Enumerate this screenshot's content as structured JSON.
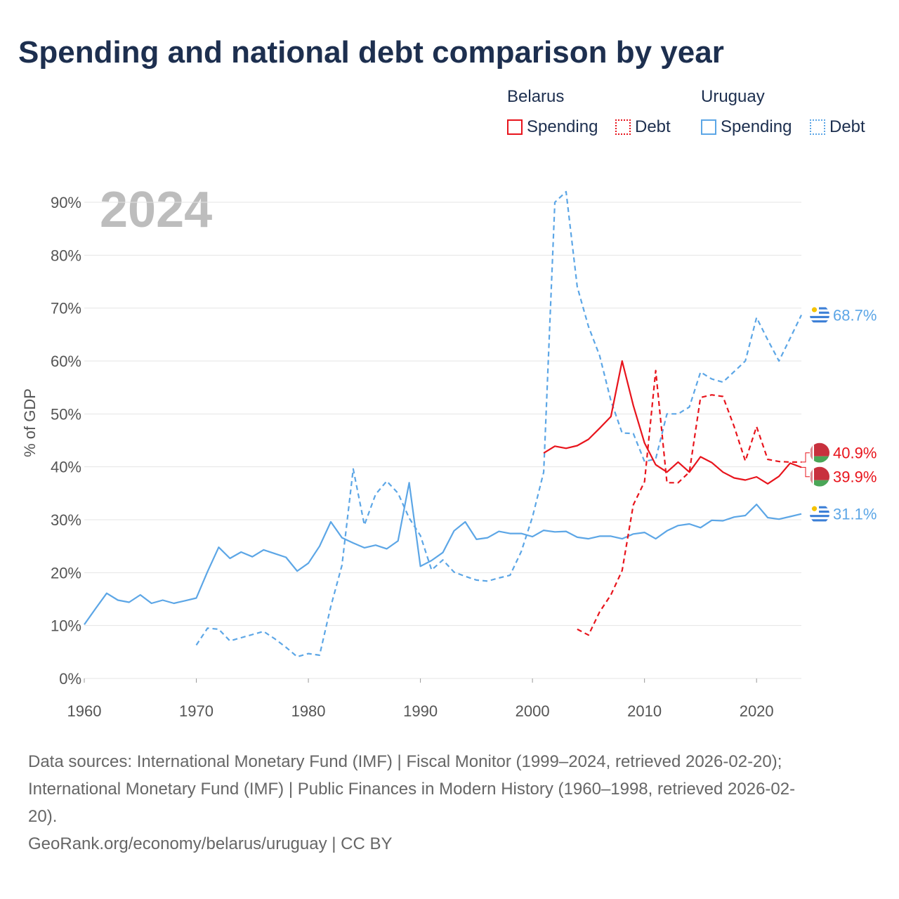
{
  "title": "Spending and national debt comparison by year",
  "legend": {
    "belarus": {
      "name": "Belarus",
      "spending": "Spending",
      "debt": "Debt"
    },
    "uruguay": {
      "name": "Uruguay",
      "spending": "Spending",
      "debt": "Debt"
    }
  },
  "colors": {
    "belarus": "#e8141c",
    "uruguay": "#5ca6e6",
    "title": "#1d2f4f",
    "year_watermark": "#bdbdbd"
  },
  "icons": {
    "belarus": "belarus-flag-icon",
    "uruguay": "uruguay-flag-icon"
  },
  "chart_data": {
    "type": "line",
    "year_label": "2024",
    "ylabel": "% of GDP",
    "xlim": [
      1960,
      2024
    ],
    "ylim": [
      0,
      92
    ],
    "x_ticks": [
      1960,
      1970,
      1980,
      1990,
      2000,
      2010,
      2020
    ],
    "x_tick_labels": [
      "1960",
      "1970",
      "1980",
      "1990",
      "2000",
      "2010",
      "2020"
    ],
    "y_ticks": [
      0,
      10,
      20,
      30,
      40,
      50,
      60,
      70,
      80,
      90
    ],
    "y_tick_labels": [
      "0%",
      "10%",
      "20%",
      "30%",
      "40%",
      "50%",
      "60%",
      "70%",
      "80%",
      "90%"
    ],
    "series": [
      {
        "name": "Uruguay Spending",
        "country": "uruguay",
        "style": "solid",
        "end_label": "31.1%",
        "points": [
          [
            1960,
            10.2
          ],
          [
            1961,
            13.2
          ],
          [
            1962,
            16.1
          ],
          [
            1963,
            14.8
          ],
          [
            1964,
            14.4
          ],
          [
            1965,
            15.8
          ],
          [
            1966,
            14.2
          ],
          [
            1967,
            14.8
          ],
          [
            1968,
            14.2
          ],
          [
            1969,
            14.7
          ],
          [
            1970,
            15.2
          ],
          [
            1971,
            20.2
          ],
          [
            1972,
            24.8
          ],
          [
            1973,
            22.7
          ],
          [
            1974,
            23.9
          ],
          [
            1975,
            23.0
          ],
          [
            1976,
            24.3
          ],
          [
            1977,
            23.6
          ],
          [
            1978,
            22.9
          ],
          [
            1979,
            20.3
          ],
          [
            1980,
            21.8
          ],
          [
            1981,
            25.0
          ],
          [
            1982,
            29.6
          ],
          [
            1983,
            26.6
          ],
          [
            1984,
            25.6
          ],
          [
            1985,
            24.7
          ],
          [
            1986,
            25.2
          ],
          [
            1987,
            24.5
          ],
          [
            1988,
            26.0
          ],
          [
            1989,
            37.0
          ],
          [
            1990,
            21.2
          ],
          [
            1991,
            22.3
          ],
          [
            1992,
            23.8
          ],
          [
            1993,
            27.9
          ],
          [
            1994,
            29.6
          ],
          [
            1995,
            26.3
          ],
          [
            1996,
            26.6
          ],
          [
            1997,
            27.8
          ],
          [
            1998,
            27.4
          ],
          [
            1999,
            27.4
          ],
          [
            2000,
            26.8
          ],
          [
            2001,
            28.0
          ],
          [
            2002,
            27.7
          ],
          [
            2003,
            27.8
          ],
          [
            2004,
            26.7
          ],
          [
            2005,
            26.4
          ],
          [
            2006,
            26.9
          ],
          [
            2007,
            26.9
          ],
          [
            2008,
            26.4
          ],
          [
            2009,
            27.3
          ],
          [
            2010,
            27.6
          ],
          [
            2011,
            26.4
          ],
          [
            2012,
            27.9
          ],
          [
            2013,
            28.9
          ],
          [
            2014,
            29.2
          ],
          [
            2015,
            28.5
          ],
          [
            2016,
            29.9
          ],
          [
            2017,
            29.8
          ],
          [
            2018,
            30.5
          ],
          [
            2019,
            30.8
          ],
          [
            2020,
            32.9
          ],
          [
            2021,
            30.4
          ],
          [
            2022,
            30.1
          ],
          [
            2023,
            30.6
          ],
          [
            2024,
            31.1
          ]
        ]
      },
      {
        "name": "Uruguay Debt",
        "country": "uruguay",
        "style": "dashed",
        "end_label": "68.7%",
        "points": [
          [
            1970,
            6.3
          ],
          [
            1971,
            9.5
          ],
          [
            1972,
            9.3
          ],
          [
            1973,
            7.1
          ],
          [
            1974,
            7.7
          ],
          [
            1975,
            8.3
          ],
          [
            1976,
            8.9
          ],
          [
            1977,
            7.5
          ],
          [
            1978,
            5.9
          ],
          [
            1979,
            4.1
          ],
          [
            1980,
            4.7
          ],
          [
            1981,
            4.4
          ],
          [
            1982,
            13.6
          ],
          [
            1983,
            21.4
          ],
          [
            1984,
            39.6
          ],
          [
            1985,
            29.0
          ],
          [
            1986,
            34.8
          ],
          [
            1987,
            37.3
          ],
          [
            1988,
            35.0
          ],
          [
            1989,
            30.3
          ],
          [
            1990,
            27.0
          ],
          [
            1991,
            20.5
          ],
          [
            1992,
            22.4
          ],
          [
            1993,
            20.1
          ],
          [
            1994,
            19.3
          ],
          [
            1995,
            18.6
          ],
          [
            1996,
            18.4
          ],
          [
            1997,
            19.0
          ],
          [
            1998,
            19.5
          ],
          [
            1999,
            24.0
          ],
          [
            2000,
            30.5
          ],
          [
            2001,
            39.0
          ],
          [
            2002,
            90.0
          ],
          [
            2003,
            92.0
          ],
          [
            2004,
            74.0
          ],
          [
            2005,
            66.5
          ],
          [
            2006,
            61.0
          ],
          [
            2007,
            52.5
          ],
          [
            2008,
            46.4
          ],
          [
            2009,
            46.3
          ],
          [
            2010,
            41.0
          ],
          [
            2011,
            41.5
          ],
          [
            2012,
            50.0
          ],
          [
            2013,
            50.0
          ],
          [
            2014,
            51.3
          ],
          [
            2015,
            57.9
          ],
          [
            2016,
            56.6
          ],
          [
            2017,
            56.0
          ],
          [
            2018,
            58.0
          ],
          [
            2019,
            60.0
          ],
          [
            2020,
            68.2
          ],
          [
            2021,
            64.0
          ],
          [
            2022,
            60.0
          ],
          [
            2023,
            64.3
          ],
          [
            2024,
            68.7
          ]
        ]
      },
      {
        "name": "Belarus Spending",
        "country": "belarus",
        "style": "solid",
        "end_label": "39.9%",
        "points": [
          [
            2001,
            42.6
          ],
          [
            2002,
            43.9
          ],
          [
            2003,
            43.5
          ],
          [
            2004,
            44.0
          ],
          [
            2005,
            45.2
          ],
          [
            2006,
            47.3
          ],
          [
            2007,
            49.5
          ],
          [
            2008,
            60.0
          ],
          [
            2009,
            51.6
          ],
          [
            2010,
            44.5
          ],
          [
            2011,
            40.4
          ],
          [
            2012,
            39.0
          ],
          [
            2013,
            40.9
          ],
          [
            2014,
            39.0
          ],
          [
            2015,
            41.9
          ],
          [
            2016,
            40.8
          ],
          [
            2017,
            39.0
          ],
          [
            2018,
            37.9
          ],
          [
            2019,
            37.5
          ],
          [
            2020,
            38.1
          ],
          [
            2021,
            36.8
          ],
          [
            2022,
            38.2
          ],
          [
            2023,
            40.7
          ],
          [
            2024,
            39.9
          ]
        ]
      },
      {
        "name": "Belarus Debt",
        "country": "belarus",
        "style": "dashed",
        "end_label": "40.9%",
        "points": [
          [
            2004,
            9.3
          ],
          [
            2005,
            8.2
          ],
          [
            2006,
            12.6
          ],
          [
            2007,
            15.8
          ],
          [
            2008,
            20.4
          ],
          [
            2009,
            32.8
          ],
          [
            2010,
            37.2
          ],
          [
            2011,
            58.2
          ],
          [
            2012,
            37.0
          ],
          [
            2013,
            37.0
          ],
          [
            2014,
            39.0
          ],
          [
            2015,
            53.1
          ],
          [
            2016,
            53.6
          ],
          [
            2017,
            53.3
          ],
          [
            2018,
            47.6
          ],
          [
            2019,
            41.1
          ],
          [
            2020,
            47.6
          ],
          [
            2021,
            41.4
          ],
          [
            2022,
            41.0
          ],
          [
            2023,
            40.9
          ],
          [
            2024,
            40.9
          ]
        ]
      }
    ]
  },
  "footer": {
    "sources_1": "Data sources: International Monetary Fund (IMF) | Fiscal Monitor (1999–2024, retrieved 2026-02-20);",
    "sources_2": "International Monetary Fund (IMF) | Public Finances in Modern History (1960–1998, retrieved 2026-02-",
    "sources_3": "20).",
    "attribution": "GeoRank.org/economy/belarus/uruguay | CC BY"
  }
}
